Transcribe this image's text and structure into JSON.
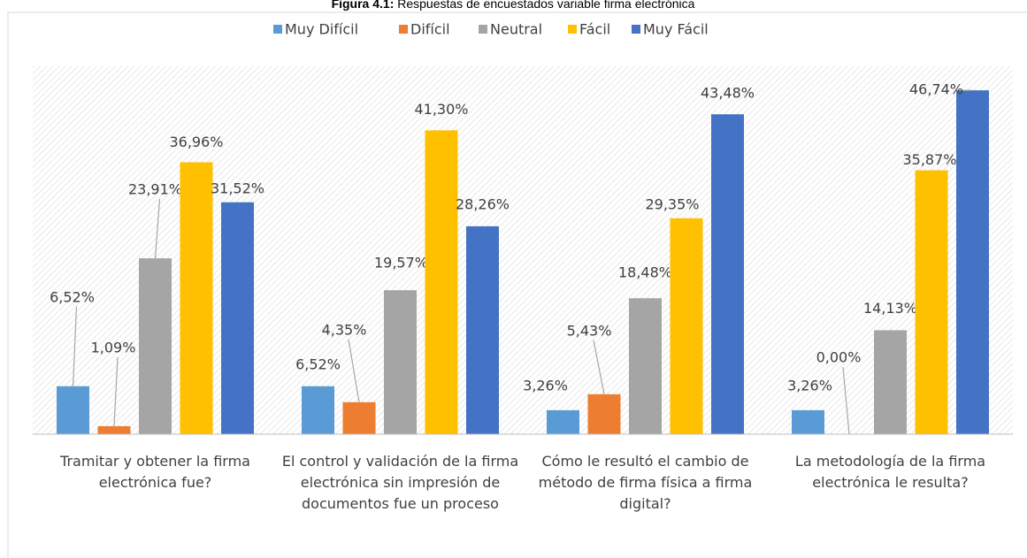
{
  "chart_data": {
    "type": "bar",
    "figure_label": "Figura 4.1:",
    "title": "Respuestas de encuestados variable firma electrónica",
    "categories": [
      "Tramitar y obtener la firma electrónica fue?",
      "El control y validación de la firma electrónica sin impresión de documentos fue un proceso",
      "Cómo le resultó el cambio de método de firma física a firma digital?",
      "La metodología de la firma electrónica le resulta?"
    ],
    "series": [
      {
        "name": "Muy Difícil",
        "color": "#5b9bd5",
        "values": [
          6.52,
          6.52,
          3.26,
          3.26
        ],
        "value_labels": [
          "6,52%",
          "6,52%",
          "3,26%",
          "3,26%"
        ]
      },
      {
        "name": "Difícil",
        "color": "#ed7d31",
        "values": [
          1.09,
          4.35,
          5.43,
          0.0
        ],
        "value_labels": [
          "1,09%",
          "4,35%",
          "5,43%",
          "0,00%"
        ]
      },
      {
        "name": "Neutral",
        "color": "#a5a5a5",
        "values": [
          23.91,
          19.57,
          18.48,
          14.13
        ],
        "value_labels": [
          "23,91%",
          "19,57%",
          "18,48%",
          "14,13%"
        ]
      },
      {
        "name": "Fácil",
        "color": "#ffc000",
        "values": [
          36.96,
          41.3,
          29.35,
          35.87
        ],
        "value_labels": [
          "36,96%",
          "41,30%",
          "29,35%",
          "35,87%"
        ]
      },
      {
        "name": "Muy Fácil",
        "color": "#4472c4",
        "values": [
          31.52,
          28.26,
          43.48,
          46.74
        ],
        "value_labels": [
          "31,52%",
          "28,26%",
          "43,48%",
          "46,74%"
        ]
      }
    ],
    "ylim": [
      0,
      50
    ],
    "legend": "top"
  }
}
